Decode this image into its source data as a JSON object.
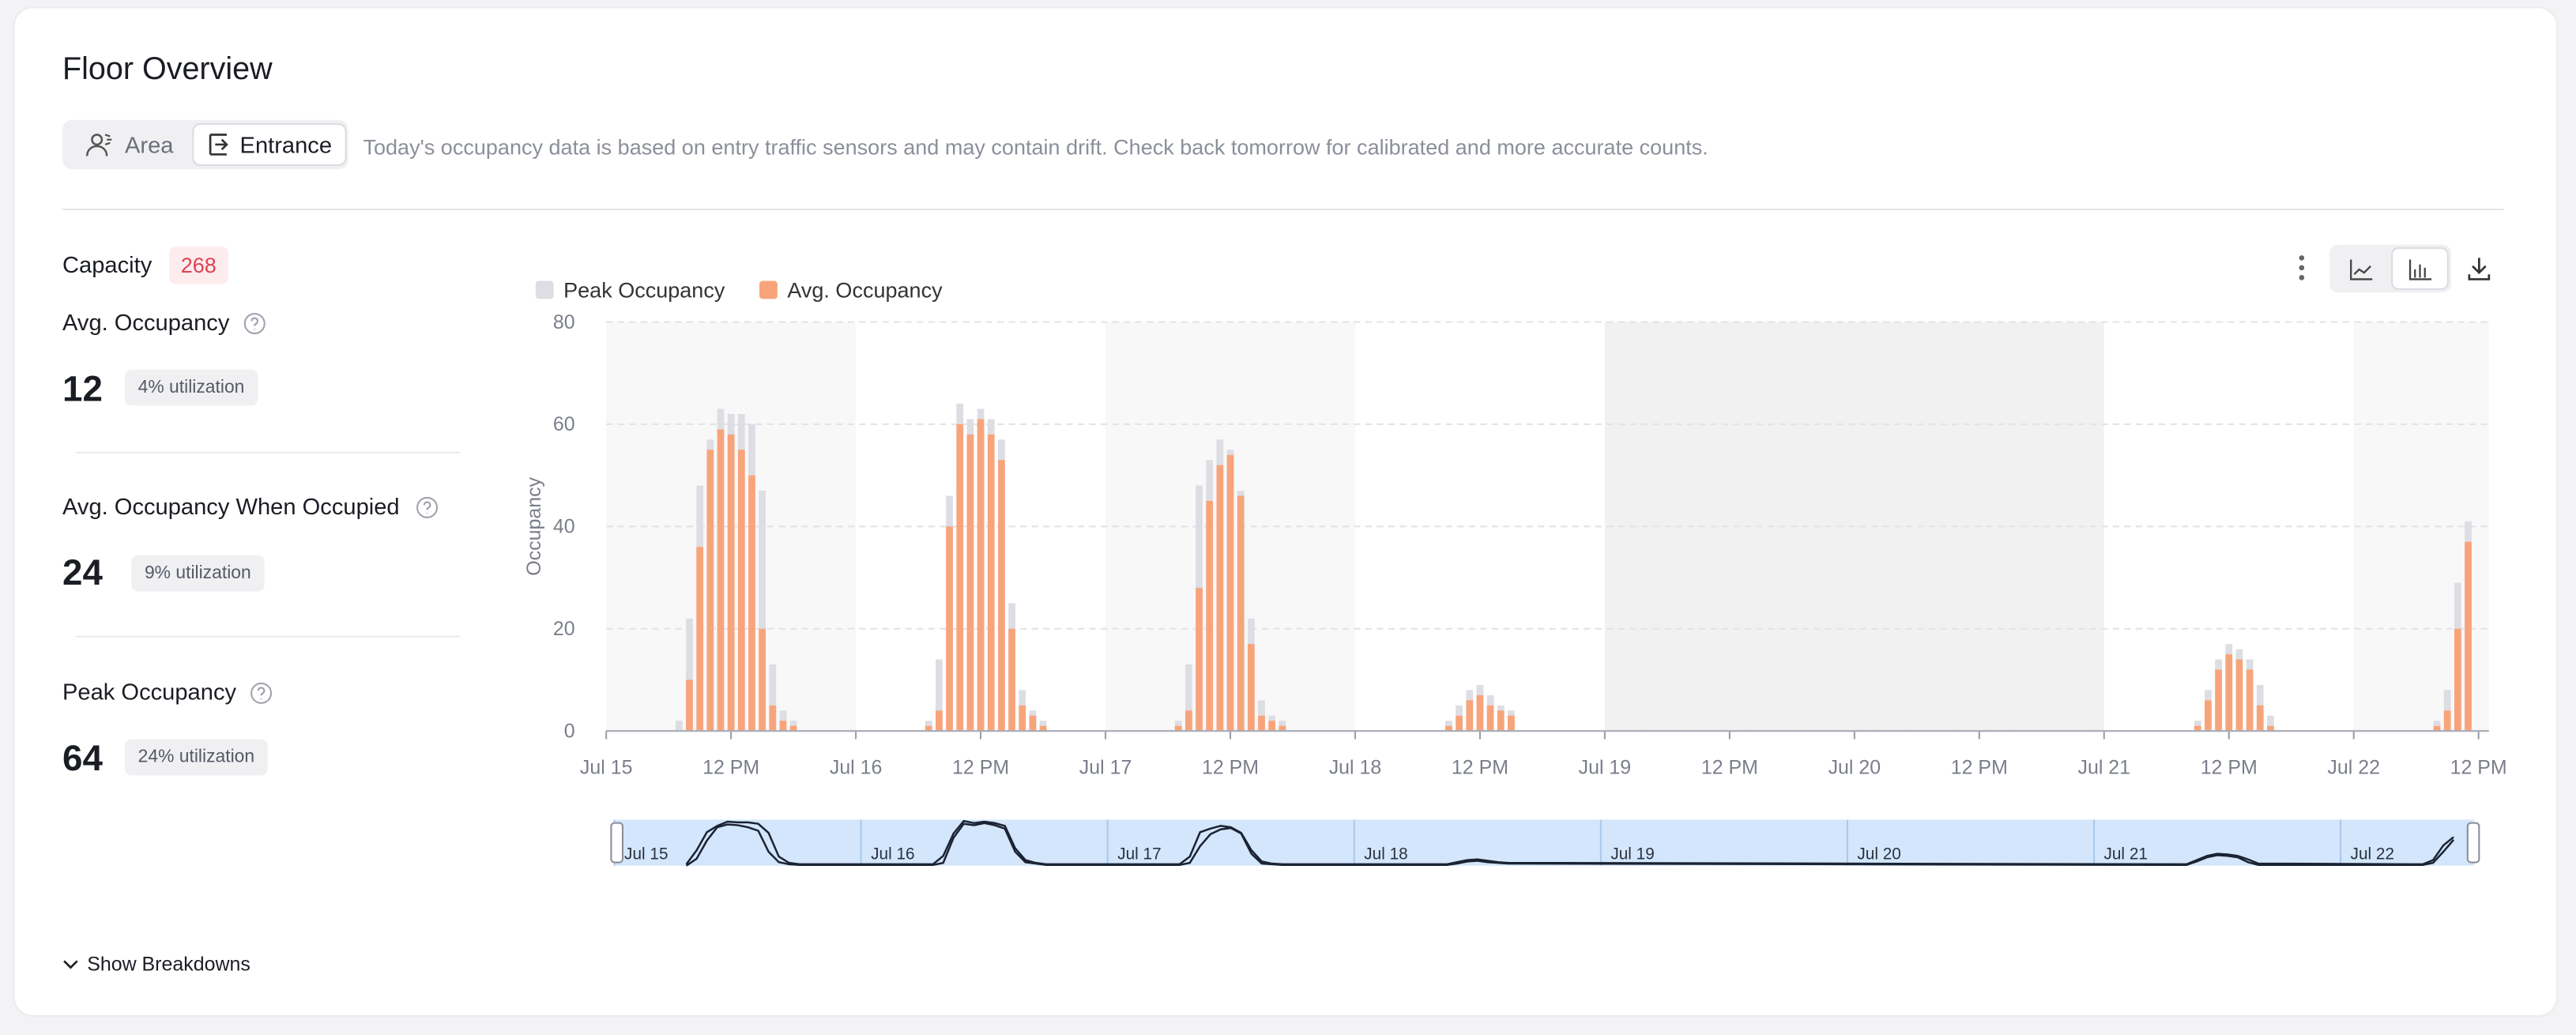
{
  "header": {
    "title": "Floor Overview",
    "tabs": [
      "Area",
      "Entrance"
    ],
    "notice": "Today's occupancy data is based on entry traffic sensors and may contain drift. Check back tomorrow for calibrated and more accurate counts."
  },
  "stats": {
    "capacity_label": "Capacity",
    "capacity": 268,
    "items": [
      {
        "label": "Avg. Occupancy",
        "value": 12,
        "utilization": "4% utilization"
      },
      {
        "label": "Avg. Occupancy When Occupied",
        "value": 24,
        "utilization": "9% utilization"
      },
      {
        "label": "Peak Occupancy",
        "value": 64,
        "utilization": "24% utilization"
      }
    ]
  },
  "footer": {
    "toggle": "Show Breakdowns"
  },
  "chart_data": {
    "type": "bar",
    "y_label": "Occupancy",
    "grid": true,
    "legend": "top-left",
    "x": [
      7,
      8,
      9,
      10,
      11,
      12,
      13,
      14,
      15,
      16,
      17,
      18,
      31,
      32,
      33,
      34,
      35,
      36,
      37,
      38,
      39,
      40,
      41,
      42,
      55,
      56,
      57,
      58,
      59,
      60,
      61,
      62,
      63,
      64,
      65,
      81,
      82,
      83,
      84,
      85,
      86,
      87,
      153,
      154,
      155,
      156,
      157,
      158,
      159,
      160,
      176,
      177,
      178,
      179
    ],
    "xlim": [
      0,
      181
    ],
    "xticks": [
      {
        "value": 0,
        "label": "Jul 15"
      },
      {
        "value": 12,
        "label": "12 PM"
      },
      {
        "value": 24,
        "label": "Jul 16"
      },
      {
        "value": 36,
        "label": "12 PM"
      },
      {
        "value": 48,
        "label": "Jul 17"
      },
      {
        "value": 60,
        "label": "12 PM"
      },
      {
        "value": 72,
        "label": "Jul 18"
      },
      {
        "value": 84,
        "label": "12 PM"
      },
      {
        "value": 96,
        "label": "Jul 19"
      },
      {
        "value": 108,
        "label": "12 PM"
      },
      {
        "value": 120,
        "label": "Jul 20"
      },
      {
        "value": 132,
        "label": "12 PM"
      },
      {
        "value": 144,
        "label": "Jul 21"
      },
      {
        "value": 156,
        "label": "12 PM"
      },
      {
        "value": 168,
        "label": "Jul 22"
      },
      {
        "value": 180,
        "label": "12 PM"
      }
    ],
    "ylim": [
      0,
      80
    ],
    "yticks": [
      0,
      20,
      40,
      60,
      80
    ],
    "series": [
      {
        "name": "Peak Occupancy",
        "color": "#dddde4",
        "values": [
          2,
          22,
          48,
          57,
          63,
          62,
          62,
          60,
          47,
          13,
          4,
          2,
          2,
          14,
          46,
          64,
          61,
          63,
          61,
          57,
          25,
          8,
          4,
          2,
          2,
          13,
          48,
          53,
          57,
          55,
          47,
          22,
          6,
          3,
          2,
          2,
          5,
          8,
          9,
          7,
          5,
          4,
          2,
          8,
          14,
          17,
          16,
          14,
          9,
          3,
          2,
          8,
          29,
          41
        ]
      },
      {
        "name": "Avg. Occupancy",
        "color": "#f8a47b",
        "values": [
          0,
          10,
          36,
          55,
          59,
          58,
          55,
          50,
          20,
          5,
          2,
          1,
          1,
          4,
          40,
          60,
          58,
          61,
          58,
          53,
          20,
          5,
          3,
          1,
          1,
          4,
          28,
          45,
          52,
          54,
          46,
          17,
          3,
          2,
          1,
          1,
          3,
          6,
          7,
          5,
          4,
          3,
          1,
          6,
          12,
          15,
          14,
          12,
          5,
          1,
          1,
          4,
          20,
          37
        ]
      }
    ]
  }
}
